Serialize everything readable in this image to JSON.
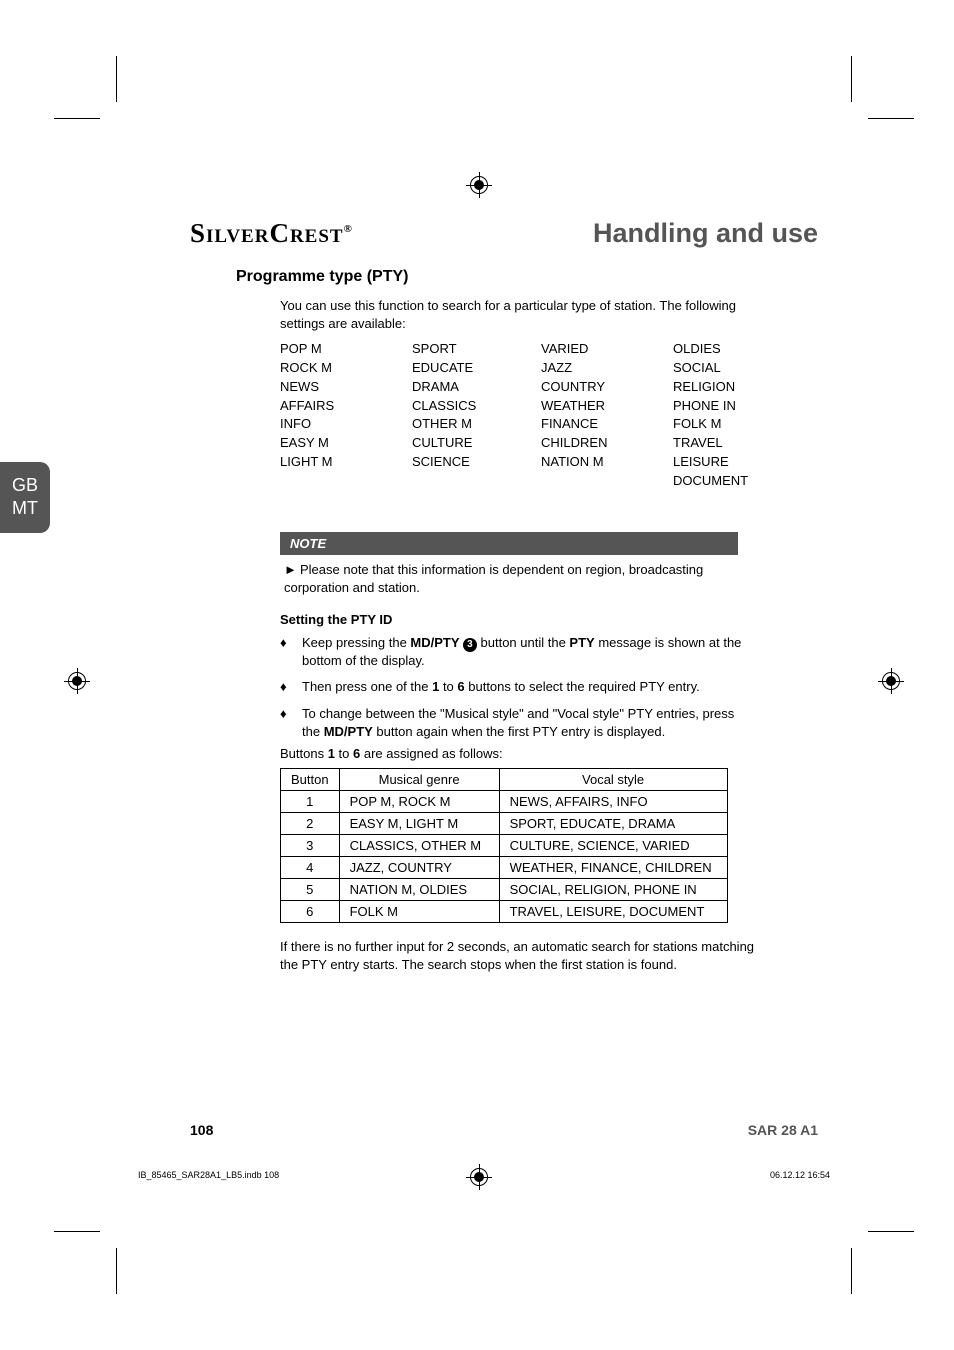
{
  "brand": "SilverCrest",
  "brand_reg": "®",
  "section_title": "Handling and use",
  "side_tab": {
    "line1": "GB",
    "line2": "MT"
  },
  "h2": "Programme type (PTY)",
  "intro": "You can use this function to search for a particular type of station. The following settings are available:",
  "pty_columns": {
    "col1": [
      "POP M",
      "ROCK M",
      "NEWS",
      "AFFAIRS",
      "INFO",
      "EASY M",
      "LIGHT M"
    ],
    "col2": [
      "SPORT",
      "EDUCATE",
      "DRAMA",
      "CLASSICS",
      "OTHER M",
      "CULTURE",
      "SCIENCE"
    ],
    "col3": [
      "VARIED",
      "JAZZ",
      "COUNTRY",
      "WEATHER",
      "FINANCE",
      "CHILDREN",
      "NATION M"
    ],
    "col4": [
      "OLDIES",
      "SOCIAL",
      "RELIGION",
      "PHONE IN",
      "FOLK M",
      "TRAVEL",
      "LEISURE",
      "DOCUMENT"
    ]
  },
  "pty_col_offsets": {
    "col1": 0,
    "col2": 132,
    "col3": 261,
    "col4": 393
  },
  "note": {
    "title": "NOTE",
    "arrow": "►",
    "text": "Please note that this information is dependent on region, broadcasting corporation and station."
  },
  "h3": "Setting the PTY ID",
  "bullets": {
    "diamond": "♦",
    "items": [
      {
        "pre": "Keep pressing the ",
        "bold1": "MD/PTY ",
        "circ": "3",
        "post": " button until the ",
        "bold2": "PTY",
        "tail": " message is shown at the bottom of the display."
      },
      {
        "pre": "Then press one of the ",
        "bold1": "1",
        "mid": " to ",
        "bold2": "6",
        "tail": " buttons to select the required PTY entry."
      },
      {
        "pre": "To change between the \"Musical style\" and \"Vocal style\" PTY entries, press the ",
        "bold1": "MD/PTY",
        "tail": " button again when the first PTY entry is displayed."
      }
    ]
  },
  "assign_line": {
    "pre": "Buttons ",
    "b1": "1",
    "mid": " to ",
    "b2": "6",
    "post": " are assigned as follows:"
  },
  "table": {
    "headers": [
      "Button",
      "Musical genre",
      "Vocal style"
    ],
    "rows": [
      [
        "1",
        "POP M, ROCK M",
        "NEWS, AFFAIRS, INFO"
      ],
      [
        "2",
        "EASY M, LIGHT M",
        "SPORT, EDUCATE, DRAMA"
      ],
      [
        "3",
        "CLASSICS, OTHER M",
        "CULTURE, SCIENCE, VARIED"
      ],
      [
        "4",
        "JAZZ, COUNTRY",
        "WEATHER, FINANCE, CHILDREN"
      ],
      [
        "5",
        "NATION M, OLDIES",
        "SOCIAL, RELIGION, PHONE IN"
      ],
      [
        "6",
        "FOLK M",
        "TRAVEL, LEISURE, DOCUMENT"
      ]
    ]
  },
  "after_table": "If there is no further input for 2 seconds, an automatic search for stations matching the PTY entry starts. The search stops when the first station is found.",
  "page_num": "108",
  "model": "SAR 28 A1",
  "footer_left": "IB_85465_SAR28A1_LB5.indb   108",
  "footer_right": "06.12.12   16:54",
  "colors": {
    "text": "#000000",
    "gray": "#555555",
    "white": "#ffffff"
  }
}
